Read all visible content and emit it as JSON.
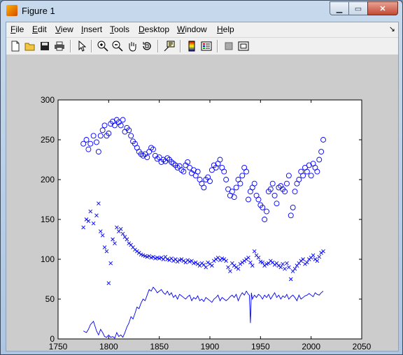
{
  "window": {
    "title": "Figure 1",
    "controls": {
      "minimize": "▁",
      "maximize": "▭",
      "close": "✕"
    }
  },
  "menubar": {
    "items": [
      {
        "key": "file",
        "label": "File",
        "accel": "F"
      },
      {
        "key": "edit",
        "label": "Edit",
        "accel": "E"
      },
      {
        "key": "view",
        "label": "View",
        "accel": "V"
      },
      {
        "key": "insert",
        "label": "Insert",
        "accel": "I"
      },
      {
        "key": "tools",
        "label": "Tools",
        "accel": "T"
      },
      {
        "key": "desktop",
        "label": "Desktop",
        "accel": "D"
      },
      {
        "key": "window",
        "label": "Window",
        "accel": "W"
      },
      {
        "key": "help",
        "label": "Help",
        "accel": "H"
      }
    ],
    "dock_arrow": "↘"
  },
  "toolbar": {
    "icons": [
      "new-figure-icon",
      "open-file-icon",
      "save-icon",
      "print-icon",
      "edit-plot-arrow-icon",
      "zoom-in-icon",
      "zoom-out-icon",
      "pan-hand-icon",
      "rotate-3d-icon",
      "data-cursor-icon",
      "colorbar-icon",
      "legend-icon",
      "hide-plot-tools-icon",
      "show-plot-tools-icon"
    ]
  },
  "colors": {
    "series": "#0000ff",
    "figure_bg": "#cccccc",
    "axes_bg": "#ffffff"
  },
  "chart_data": {
    "type": "scatter",
    "xlim": [
      1750,
      2050
    ],
    "ylim": [
      0,
      300
    ],
    "xticks": [
      1750,
      1800,
      1850,
      1900,
      1950,
      2000,
      2050
    ],
    "yticks": [
      0,
      50,
      100,
      150,
      200,
      250,
      300
    ],
    "grid": false,
    "series": [
      {
        "marker": "circle",
        "x": [
          1775,
          1778,
          1780,
          1782,
          1785,
          1788,
          1790,
          1792,
          1794,
          1796,
          1798,
          1800,
          1802,
          1804,
          1806,
          1808,
          1810,
          1812,
          1814,
          1816,
          1818,
          1820,
          1822,
          1824,
          1826,
          1828,
          1830,
          1832,
          1834,
          1836,
          1838,
          1840,
          1842,
          1844,
          1846,
          1848,
          1850,
          1852,
          1854,
          1856,
          1858,
          1860,
          1862,
          1864,
          1866,
          1868,
          1870,
          1872,
          1874,
          1876,
          1878,
          1880,
          1882,
          1884,
          1886,
          1888,
          1890,
          1892,
          1894,
          1896,
          1898,
          1900,
          1902,
          1904,
          1906,
          1908,
          1910,
          1912,
          1914,
          1916,
          1918,
          1920,
          1922,
          1924,
          1926,
          1928,
          1930,
          1932,
          1934,
          1936,
          1938,
          1940,
          1942,
          1944,
          1946,
          1948,
          1950,
          1952,
          1954,
          1956,
          1958,
          1960,
          1962,
          1964,
          1966,
          1968,
          1970,
          1972,
          1974,
          1976,
          1978,
          1980,
          1982,
          1984,
          1986,
          1988,
          1990,
          1992,
          1994,
          1996,
          1998,
          2000,
          2002,
          2004,
          2006,
          2008,
          2010,
          2012
        ],
        "y": [
          245,
          250,
          238,
          245,
          255,
          247,
          235,
          255,
          262,
          268,
          255,
          258,
          270,
          273,
          268,
          275,
          272,
          268,
          275,
          260,
          265,
          262,
          255,
          248,
          245,
          240,
          235,
          232,
          230,
          232,
          228,
          235,
          240,
          238,
          230,
          226,
          228,
          222,
          225,
          223,
          227,
          225,
          222,
          220,
          218,
          215,
          217,
          212,
          210,
          218,
          222,
          215,
          208,
          212,
          205,
          210,
          200,
          195,
          190,
          200,
          203,
          198,
          212,
          218,
          215,
          220,
          225,
          215,
          210,
          200,
          188,
          180,
          185,
          178,
          190,
          200,
          195,
          205,
          215,
          210,
          175,
          185,
          190,
          195,
          180,
          175,
          168,
          165,
          150,
          160,
          185,
          188,
          195,
          180,
          170,
          190,
          192,
          188,
          185,
          195,
          205,
          155,
          165,
          185,
          195,
          200,
          210,
          205,
          215,
          210,
          218,
          205,
          220,
          215,
          210,
          225,
          235,
          250
        ]
      },
      {
        "marker": "x",
        "x": [
          1775,
          1778,
          1780,
          1782,
          1785,
          1788,
          1790,
          1792,
          1794,
          1796,
          1798,
          1800,
          1802,
          1804,
          1806,
          1808,
          1810,
          1812,
          1814,
          1816,
          1818,
          1820,
          1822,
          1824,
          1826,
          1828,
          1830,
          1832,
          1834,
          1836,
          1838,
          1840,
          1842,
          1844,
          1846,
          1848,
          1850,
          1852,
          1854,
          1856,
          1858,
          1860,
          1862,
          1864,
          1866,
          1868,
          1870,
          1872,
          1874,
          1876,
          1878,
          1880,
          1882,
          1884,
          1886,
          1888,
          1890,
          1892,
          1894,
          1896,
          1898,
          1900,
          1902,
          1904,
          1906,
          1908,
          1910,
          1912,
          1914,
          1916,
          1918,
          1920,
          1922,
          1924,
          1926,
          1928,
          1930,
          1932,
          1934,
          1936,
          1938,
          1940,
          1942,
          1944,
          1946,
          1948,
          1950,
          1952,
          1954,
          1956,
          1958,
          1960,
          1962,
          1964,
          1966,
          1968,
          1970,
          1972,
          1974,
          1976,
          1978,
          1980,
          1982,
          1984,
          1986,
          1988,
          1990,
          1992,
          1994,
          1996,
          1998,
          2000,
          2002,
          2004,
          2006,
          2008,
          2010,
          2012
        ],
        "y": [
          140,
          150,
          148,
          160,
          145,
          155,
          170,
          135,
          130,
          115,
          110,
          70,
          95,
          125,
          120,
          140,
          135,
          138,
          132,
          128,
          125,
          120,
          118,
          115,
          112,
          110,
          108,
          106,
          105,
          104,
          103,
          104,
          102,
          103,
          101,
          102,
          101,
          102,
          100,
          103,
          100,
          99,
          101,
          98,
          100,
          97,
          99,
          100,
          98,
          96,
          99,
          97,
          98,
          95,
          96,
          94,
          92,
          95,
          93,
          90,
          96,
          94,
          92,
          98,
          100,
          102,
          99,
          101,
          100,
          98,
          90,
          85,
          95,
          92,
          90,
          88,
          94,
          96,
          98,
          100,
          102,
          96,
          92,
          110,
          105,
          102,
          97,
          96,
          92,
          94,
          95,
          98,
          96,
          93,
          95,
          92,
          90,
          94,
          88,
          95,
          90,
          75,
          85,
          88,
          92,
          95,
          98,
          100,
          94,
          96,
          100,
          102,
          105,
          100,
          98,
          103,
          108,
          110
        ]
      },
      {
        "marker": "line",
        "x": [
          1775,
          1778,
          1780,
          1782,
          1785,
          1788,
          1790,
          1792,
          1794,
          1796,
          1798,
          1800,
          1802,
          1804,
          1806,
          1808,
          1810,
          1812,
          1814,
          1816,
          1818,
          1820,
          1822,
          1824,
          1826,
          1828,
          1830,
          1832,
          1834,
          1836,
          1838,
          1840,
          1842,
          1844,
          1846,
          1848,
          1850,
          1852,
          1854,
          1856,
          1858,
          1860,
          1862,
          1864,
          1866,
          1868,
          1870,
          1872,
          1874,
          1876,
          1878,
          1880,
          1882,
          1884,
          1886,
          1888,
          1890,
          1892,
          1894,
          1896,
          1898,
          1900,
          1902,
          1904,
          1906,
          1908,
          1910,
          1912,
          1914,
          1916,
          1918,
          1920,
          1922,
          1924,
          1926,
          1928,
          1930,
          1932,
          1934,
          1936,
          1938,
          1939,
          1940,
          1941,
          1942,
          1944,
          1946,
          1948,
          1950,
          1952,
          1954,
          1956,
          1958,
          1960,
          1962,
          1964,
          1966,
          1968,
          1970,
          1972,
          1974,
          1976,
          1978,
          1980,
          1982,
          1984,
          1986,
          1988,
          1990,
          1992,
          1994,
          1996,
          1998,
          2000,
          2002,
          2004,
          2006,
          2008,
          2010,
          2012
        ],
        "y": [
          10,
          8,
          12,
          18,
          22,
          10,
          5,
          12,
          8,
          3,
          2,
          5,
          2,
          3,
          1,
          8,
          3,
          5,
          2,
          8,
          15,
          20,
          28,
          25,
          32,
          40,
          38,
          45,
          50,
          48,
          55,
          62,
          60,
          65,
          62,
          58,
          60,
          62,
          58,
          56,
          60,
          55,
          58,
          52,
          55,
          50,
          56,
          54,
          52,
          50,
          53,
          55,
          48,
          52,
          50,
          54,
          48,
          50,
          47,
          52,
          50,
          48,
          46,
          50,
          52,
          55,
          48,
          52,
          50,
          48,
          50,
          53,
          55,
          52,
          56,
          48,
          54,
          58,
          55,
          60,
          56,
          55,
          20,
          58,
          50,
          55,
          52,
          56,
          54,
          50,
          55,
          52,
          56,
          50,
          54,
          58,
          52,
          55,
          50,
          54,
          52,
          56,
          50,
          53,
          55,
          52,
          48,
          55,
          50,
          52,
          54,
          55,
          57,
          55,
          53,
          58,
          56,
          55,
          58,
          60
        ]
      }
    ]
  }
}
